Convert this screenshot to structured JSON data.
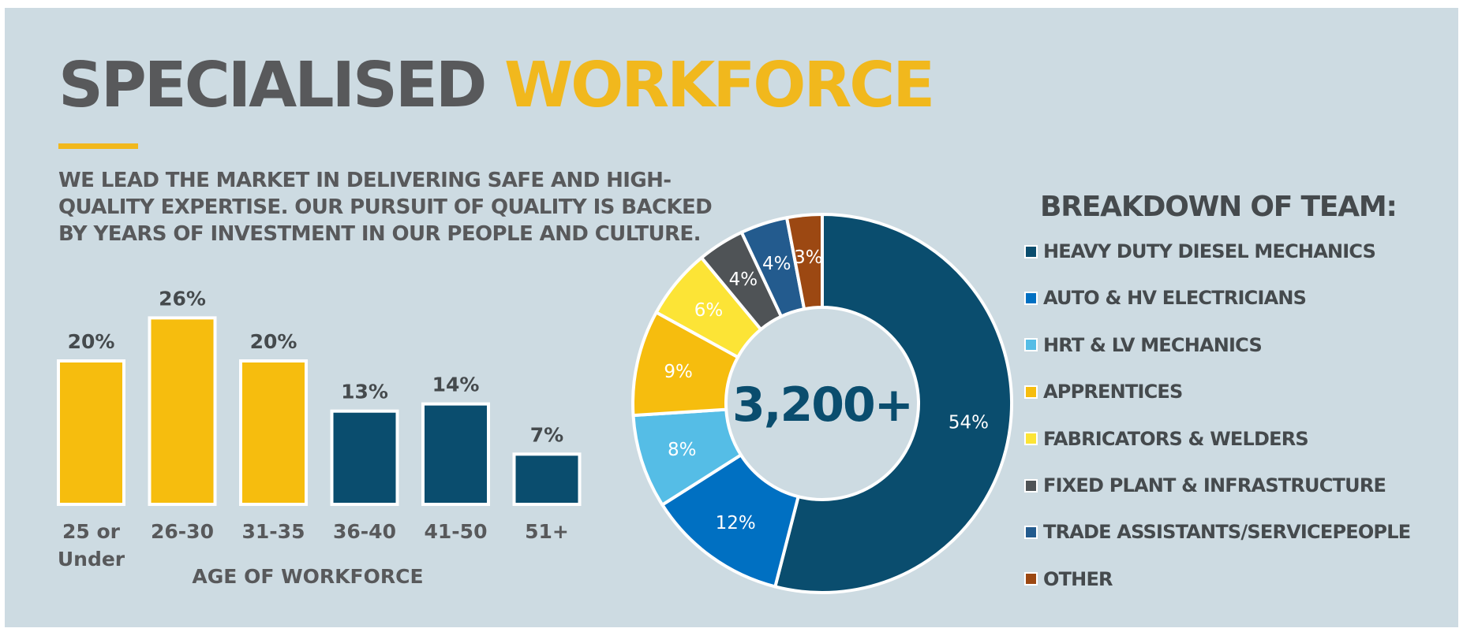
{
  "header": {
    "title_part1": "SPECIALISED",
    "title_part2": "WORKFORCE",
    "intro": "WE LEAD THE MARKET IN DELIVERING SAFE AND HIGH-QUALITY EXPERTISE. OUR PURSUIT OF QUALITY IS BACKED BY YEARS OF INVESTMENT IN OUR PEOPLE AND CULTURE."
  },
  "colors": {
    "background": "#cddbe2",
    "brand_gray": "#58595b",
    "brand_yellow": "#f1b81d",
    "navy": "#0a4d6e"
  },
  "chart_data": [
    {
      "type": "bar",
      "title": "",
      "xlabel": "AGE OF WORKFORCE",
      "ylabel": "",
      "ylim": [
        0,
        30
      ],
      "grid": false,
      "categories": [
        "25 or Under",
        "26-30",
        "31-35",
        "36-40",
        "41-50",
        "51+"
      ],
      "values": [
        20,
        26,
        20,
        13,
        14,
        7
      ],
      "value_labels": [
        "20%",
        "26%",
        "20%",
        "13%",
        "14%",
        "7%"
      ],
      "bar_colors": [
        "#f6bd0e",
        "#f6bd0e",
        "#f6bd0e",
        "#0a4d6e",
        "#0a4d6e",
        "#0a4d6e"
      ]
    },
    {
      "type": "pie",
      "style": "donut",
      "title": "BREAKDOWN OF TEAM:",
      "center_label": "3,200+",
      "legend_position": "right",
      "slices": [
        {
          "label": "HEAVY DUTY DIESEL MECHANICS",
          "value": 54,
          "value_label": "54%",
          "color": "#0a4d6e"
        },
        {
          "label": "AUTO & HV ELECTRICIANS",
          "value": 12,
          "value_label": "12%",
          "color": "#0070c2"
        },
        {
          "label": "HRT & LV MECHANICS",
          "value": 8,
          "value_label": "8%",
          "color": "#55bde6"
        },
        {
          "label": "APPRENTICES",
          "value": 9,
          "value_label": "9%",
          "color": "#f6bd0e"
        },
        {
          "label": "FABRICATORS & WELDERS",
          "value": 6,
          "value_label": "6%",
          "color": "#fce436"
        },
        {
          "label": "FIXED PLANT & INFRASTRUCTURE",
          "value": 4,
          "value_label": "4%",
          "color": "#4f5356"
        },
        {
          "label": "TRADE ASSISTANTS/SERVICEPEOPLE",
          "value": 4,
          "value_label": "4%",
          "color": "#235b8e"
        },
        {
          "label": "OTHER",
          "value": 3,
          "value_label": "3%",
          "color": "#9c4812"
        }
      ]
    }
  ]
}
